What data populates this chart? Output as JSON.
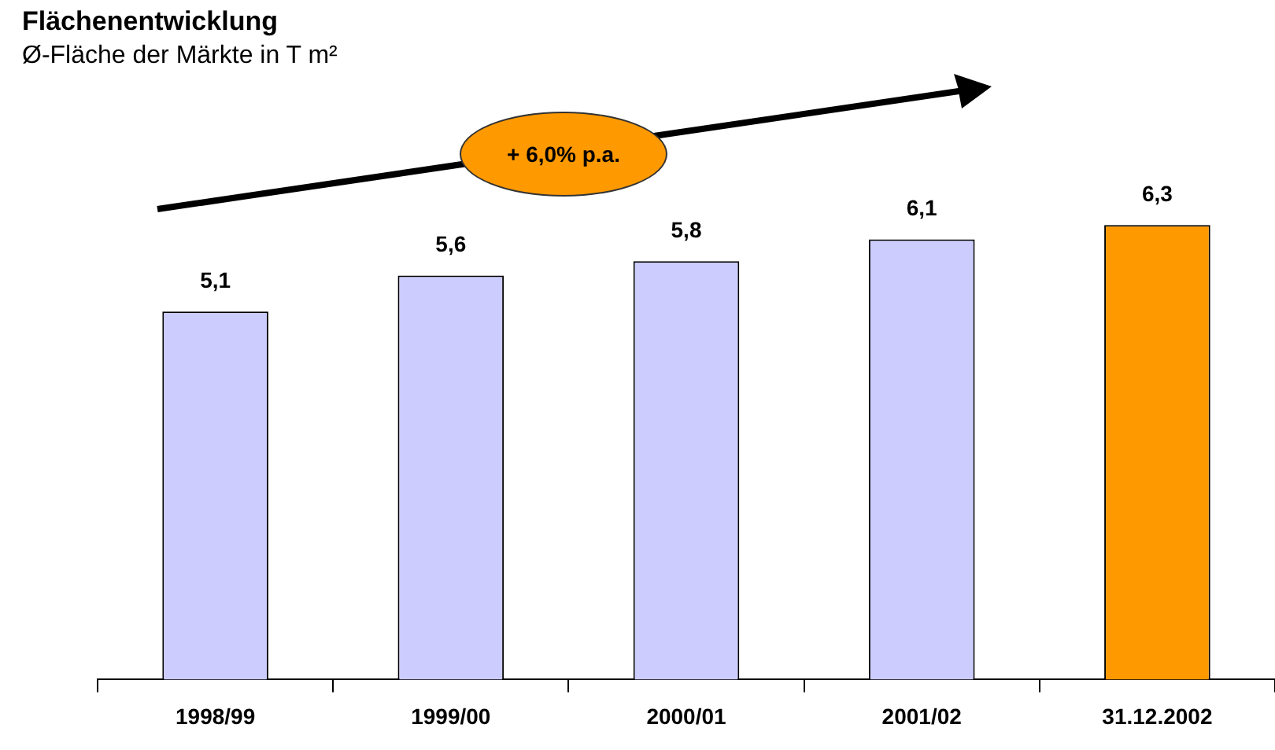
{
  "chart_data": {
    "type": "bar",
    "title": "Flächenentwicklung",
    "subtitle": "Ø-Fläche der Märkte in T m²",
    "categories": [
      "1998/99",
      "1999/00",
      "2000/01",
      "2001/02",
      "31.12.2002"
    ],
    "values": [
      5.1,
      5.6,
      5.8,
      6.1,
      6.3
    ],
    "value_labels": [
      "5,1",
      "5,6",
      "5,8",
      "6,1",
      "6,3"
    ],
    "colors": [
      "#ccccff",
      "#ccccff",
      "#ccccff",
      "#ccccff",
      "#ff9900"
    ],
    "annotations": [
      "+ 6,0% p.a."
    ],
    "grid": false,
    "legend": false
  }
}
